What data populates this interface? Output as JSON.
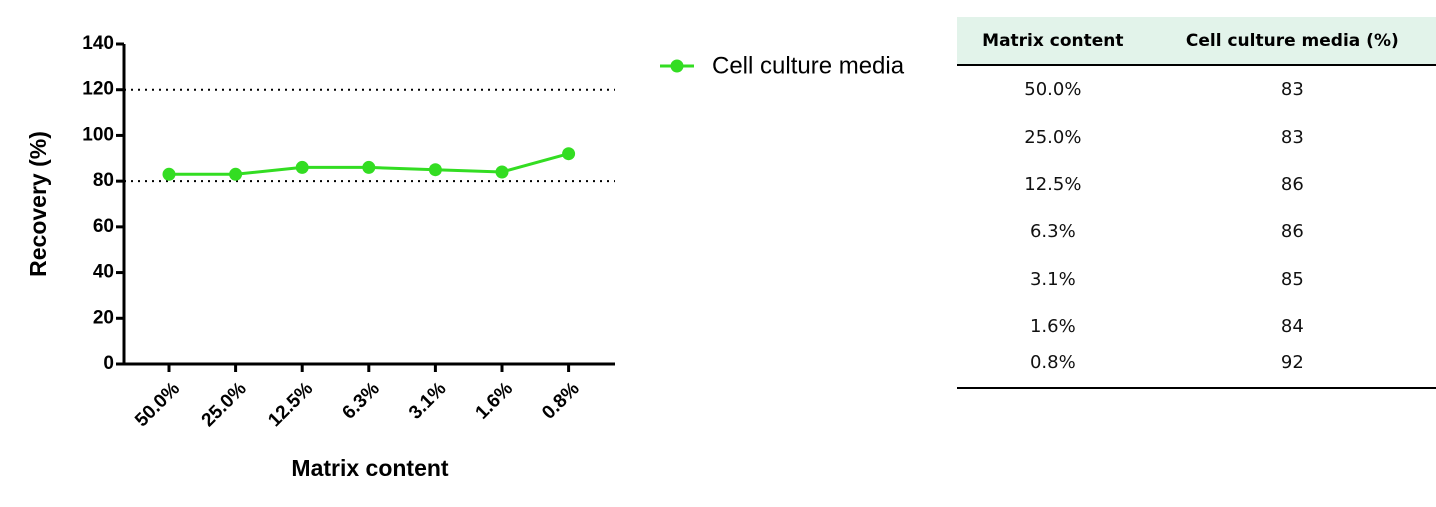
{
  "chart_data": {
    "type": "line",
    "x_label": "Matrix content",
    "y_label": "Recovery (%)",
    "categories": [
      "50.0%",
      "25.0%",
      "12.5%",
      "6.3%",
      "3.1%",
      "1.6%",
      "0.8%"
    ],
    "series": [
      {
        "name": "Cell culture media",
        "color": "#33dd22",
        "values": [
          83,
          83,
          86,
          86,
          85,
          84,
          92
        ]
      }
    ],
    "ylim": [
      0,
      140
    ],
    "yticks": [
      0,
      20,
      40,
      60,
      80,
      100,
      120,
      140
    ],
    "reference_lines": [
      80,
      120
    ],
    "grid": false,
    "legend": "right"
  },
  "table": {
    "header": [
      "Matrix content",
      "Cell culture media (%)"
    ],
    "rows": [
      [
        "50.0%",
        "83"
      ],
      [
        "25.0%",
        "83"
      ],
      [
        "12.5%",
        "86"
      ],
      [
        "6.3%",
        "86"
      ],
      [
        "3.1%",
        "85"
      ],
      [
        "1.6%",
        "84"
      ],
      [
        "0.8%",
        "92"
      ]
    ]
  }
}
